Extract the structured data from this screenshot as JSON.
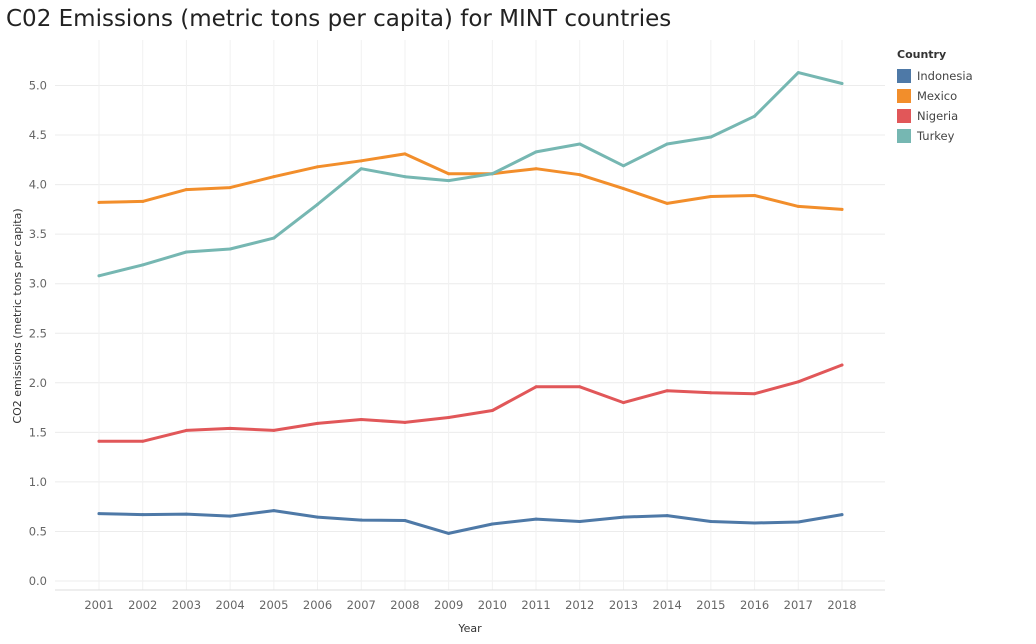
{
  "chart_data": {
    "type": "line",
    "title": "C02 Emissions (metric tons per capita) for MINT countries",
    "xlabel": "Year",
    "ylabel": "CO2 emissions (metric tons per capita)",
    "ylim": [
      0,
      5.3
    ],
    "y_ticks": [
      "0.0",
      "0.5",
      "1.0",
      "1.5",
      "2.0",
      "2.5",
      "3.0",
      "3.5",
      "4.0",
      "4.5",
      "5.0"
    ],
    "grid": true,
    "legend_position": "right",
    "legend_title": "Country",
    "categories": [
      "2001",
      "2002",
      "2003",
      "2004",
      "2005",
      "2006",
      "2007",
      "2008",
      "2009",
      "2010",
      "2011",
      "2012",
      "2013",
      "2014",
      "2015",
      "2016",
      "2017",
      "2018"
    ],
    "series": [
      {
        "name": "Indonesia",
        "color": "#4e79a7",
        "values": [
          0.68,
          0.67,
          0.675,
          0.655,
          0.71,
          0.645,
          0.615,
          0.61,
          0.48,
          0.575,
          0.625,
          0.6,
          0.645,
          0.66,
          0.6,
          0.585,
          0.595,
          0.67
        ]
      },
      {
        "name": "Mexico",
        "color": "#f28e2b",
        "values": [
          3.82,
          3.83,
          3.95,
          3.97,
          4.08,
          4.18,
          4.24,
          4.31,
          4.11,
          4.11,
          4.16,
          4.1,
          3.96,
          3.81,
          3.88,
          3.89,
          3.78,
          3.75
        ]
      },
      {
        "name": "Nigeria",
        "color": "#e15759",
        "values": [
          1.41,
          1.41,
          1.52,
          1.54,
          1.52,
          1.59,
          1.63,
          1.6,
          1.65,
          1.72,
          1.96,
          1.96,
          1.8,
          1.92,
          1.9,
          1.89,
          2.01,
          2.18
        ]
      },
      {
        "name": "Turkey",
        "color": "#76b7b2",
        "values": [
          3.08,
          3.19,
          3.32,
          3.35,
          3.46,
          3.8,
          4.16,
          4.08,
          4.04,
          4.11,
          4.33,
          4.41,
          4.19,
          4.41,
          4.48,
          4.69,
          5.13,
          5.02
        ]
      }
    ]
  }
}
